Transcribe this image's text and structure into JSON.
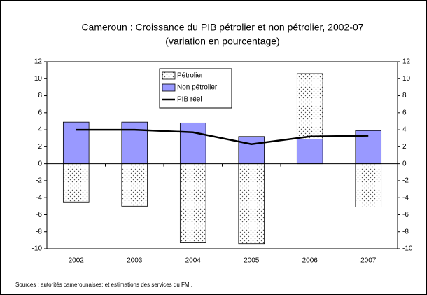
{
  "chart_data": {
    "type": "bar",
    "title": "Cameroun : Croissance du PIB pétrolier et non pétrolier, 2002-07",
    "subtitle": "(variation en pourcentage)",
    "categories": [
      "2002",
      "2003",
      "2004",
      "2005",
      "2006",
      "2007"
    ],
    "series": [
      {
        "name": "Pétrolier",
        "color": "#ffffff",
        "values": [
          -4.5,
          -5.0,
          -9.3,
          -9.4,
          10.6,
          -5.1
        ]
      },
      {
        "name": "Non pétrolier",
        "color": "#9999ff",
        "values": [
          4.9,
          4.9,
          4.8,
          3.2,
          2.9,
          3.9
        ]
      },
      {
        "name": "PIB réel",
        "color": "#000000",
        "type": "line",
        "values": [
          4.0,
          4.0,
          3.7,
          2.3,
          3.2,
          3.3
        ]
      }
    ],
    "ylim": [
      -10,
      12
    ],
    "yticks": [
      -10,
      -8,
      -6,
      -4,
      -2,
      0,
      2,
      4,
      6,
      8,
      10,
      12
    ],
    "y2lim": [
      -10,
      12
    ],
    "y2ticks": [
      -10,
      -8,
      -6,
      -4,
      -2,
      0,
      2,
      4,
      6,
      8,
      10,
      12
    ],
    "legend": "top-center",
    "source": "Sources : autorités camerounaises; et estimations des services du FMI."
  }
}
